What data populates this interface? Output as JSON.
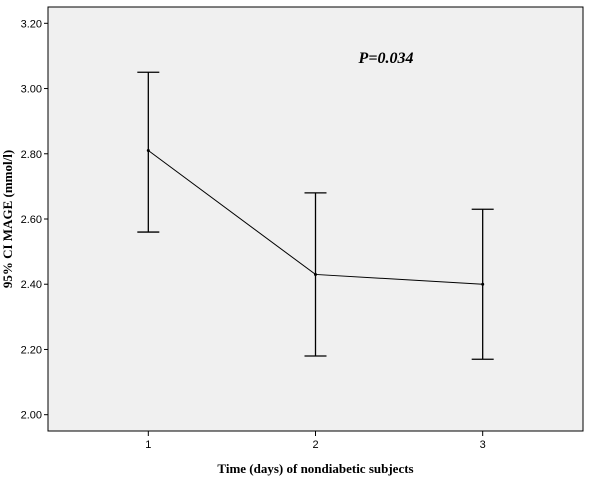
{
  "chart_data": {
    "type": "line",
    "title": "",
    "xlabel": "Time (days) of nondiabetic subjects",
    "ylabel": "95% CI MAGE (mmol/l)",
    "annotation": "P=0.034",
    "x": [
      1,
      2,
      3
    ],
    "x_tick_labels": [
      "1",
      "2",
      "3"
    ],
    "xlim": [
      0.4,
      3.6
    ],
    "ylim": [
      1.95,
      3.25
    ],
    "y_ticks": [
      2.0,
      2.2,
      2.4,
      2.6,
      2.8,
      3.0,
      3.2
    ],
    "y_tick_labels": [
      "2.00",
      "2.20",
      "2.40",
      "2.60",
      "2.80",
      "3.00",
      "3.20"
    ],
    "series": [
      {
        "mean": [
          2.81,
          2.43,
          2.4
        ],
        "ci_lower": [
          2.56,
          2.18,
          2.17
        ],
        "ci_upper": [
          3.05,
          2.68,
          2.63
        ]
      }
    ],
    "grid": false,
    "colors": {
      "plot_background": "#f0f0f0",
      "line": "#000000"
    }
  }
}
